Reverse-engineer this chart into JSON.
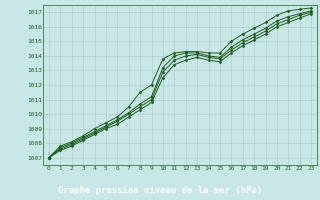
{
  "title": "Graphe pression niveau de la mer (hPa)",
  "bg_color": "#c8e8e8",
  "label_bg_color": "#2d6b4a",
  "line_color": "#1a5e1a",
  "grid_color": "#b0d0d0",
  "xlim": [
    -0.5,
    23.5
  ],
  "ylim": [
    1006.5,
    1017.5
  ],
  "xticks": [
    0,
    1,
    2,
    3,
    4,
    5,
    6,
    7,
    8,
    9,
    10,
    11,
    12,
    13,
    14,
    15,
    16,
    17,
    18,
    19,
    20,
    21,
    22,
    23
  ],
  "yticks": [
    1007,
    1008,
    1009,
    1010,
    1011,
    1012,
    1013,
    1014,
    1015,
    1016,
    1017
  ],
  "series": [
    [
      1007.0,
      1007.8,
      1008.1,
      1008.5,
      1009.0,
      1009.4,
      1009.8,
      1010.5,
      1011.5,
      1012.0,
      1013.8,
      1014.2,
      1014.3,
      1014.3,
      1014.2,
      1014.2,
      1015.0,
      1015.5,
      1015.9,
      1016.3,
      1016.8,
      1017.1,
      1017.2,
      1017.3
    ],
    [
      1007.0,
      1007.7,
      1008.0,
      1008.4,
      1008.8,
      1009.2,
      1009.6,
      1010.1,
      1010.7,
      1011.2,
      1013.2,
      1014.0,
      1014.2,
      1014.2,
      1014.0,
      1013.9,
      1014.6,
      1015.1,
      1015.5,
      1015.9,
      1016.4,
      1016.7,
      1016.9,
      1017.1
    ],
    [
      1007.0,
      1007.6,
      1007.9,
      1008.3,
      1008.7,
      1009.1,
      1009.5,
      1010.0,
      1010.5,
      1011.0,
      1012.9,
      1013.7,
      1014.0,
      1014.1,
      1013.9,
      1013.8,
      1014.4,
      1014.9,
      1015.3,
      1015.7,
      1016.2,
      1016.5,
      1016.8,
      1017.0
    ],
    [
      1007.0,
      1007.5,
      1007.8,
      1008.2,
      1008.6,
      1009.0,
      1009.3,
      1009.8,
      1010.3,
      1010.8,
      1012.5,
      1013.4,
      1013.7,
      1013.9,
      1013.7,
      1013.6,
      1014.2,
      1014.7,
      1015.1,
      1015.5,
      1016.0,
      1016.3,
      1016.6,
      1016.9
    ]
  ]
}
